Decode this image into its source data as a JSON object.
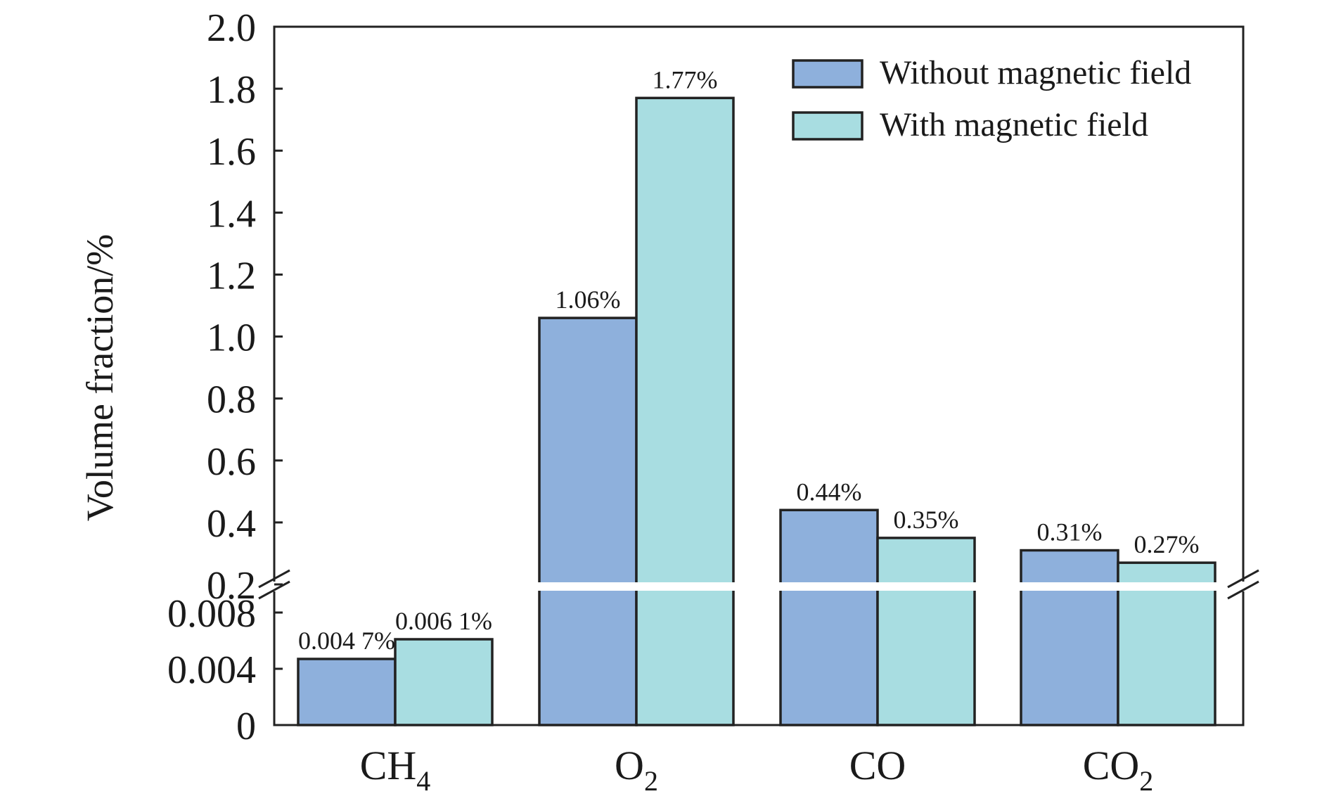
{
  "chart_data": {
    "type": "bar",
    "title": "",
    "xlabel": "",
    "ylabel": "Volume fraction/%",
    "broken_y_axis": true,
    "y_axis_lower": {
      "range": [
        0,
        0.01
      ],
      "tick_labels": [
        "0",
        "0.004",
        "0.008"
      ]
    },
    "y_axis_upper": {
      "range": [
        0.2,
        2.0
      ],
      "tick_labels": [
        "0.2",
        "0.4",
        "0.6",
        "0.8",
        "1.0",
        "1.2",
        "1.4",
        "1.6",
        "1.8",
        "2.0"
      ]
    },
    "categories": [
      {
        "main": "CH",
        "sub": "4"
      },
      {
        "main": "O",
        "sub": "2"
      },
      {
        "main": "CO",
        "sub": ""
      },
      {
        "main": "CO",
        "sub": "2"
      }
    ],
    "series": [
      {
        "name": "Without magnetic field",
        "color": "#8eb0dc",
        "values": [
          0.0047,
          1.06,
          0.44,
          0.31
        ],
        "labels": [
          "0.004 7%",
          "1.06%",
          "0.44%",
          "0.31%"
        ]
      },
      {
        "name": "With magnetic field",
        "color": "#a8dde1",
        "values": [
          0.0061,
          1.77,
          0.35,
          0.27
        ],
        "labels": [
          "0.006 1%",
          "1.77%",
          "0.35%",
          "0.27%"
        ]
      }
    ],
    "legend_position": "top-right",
    "grid": false
  }
}
